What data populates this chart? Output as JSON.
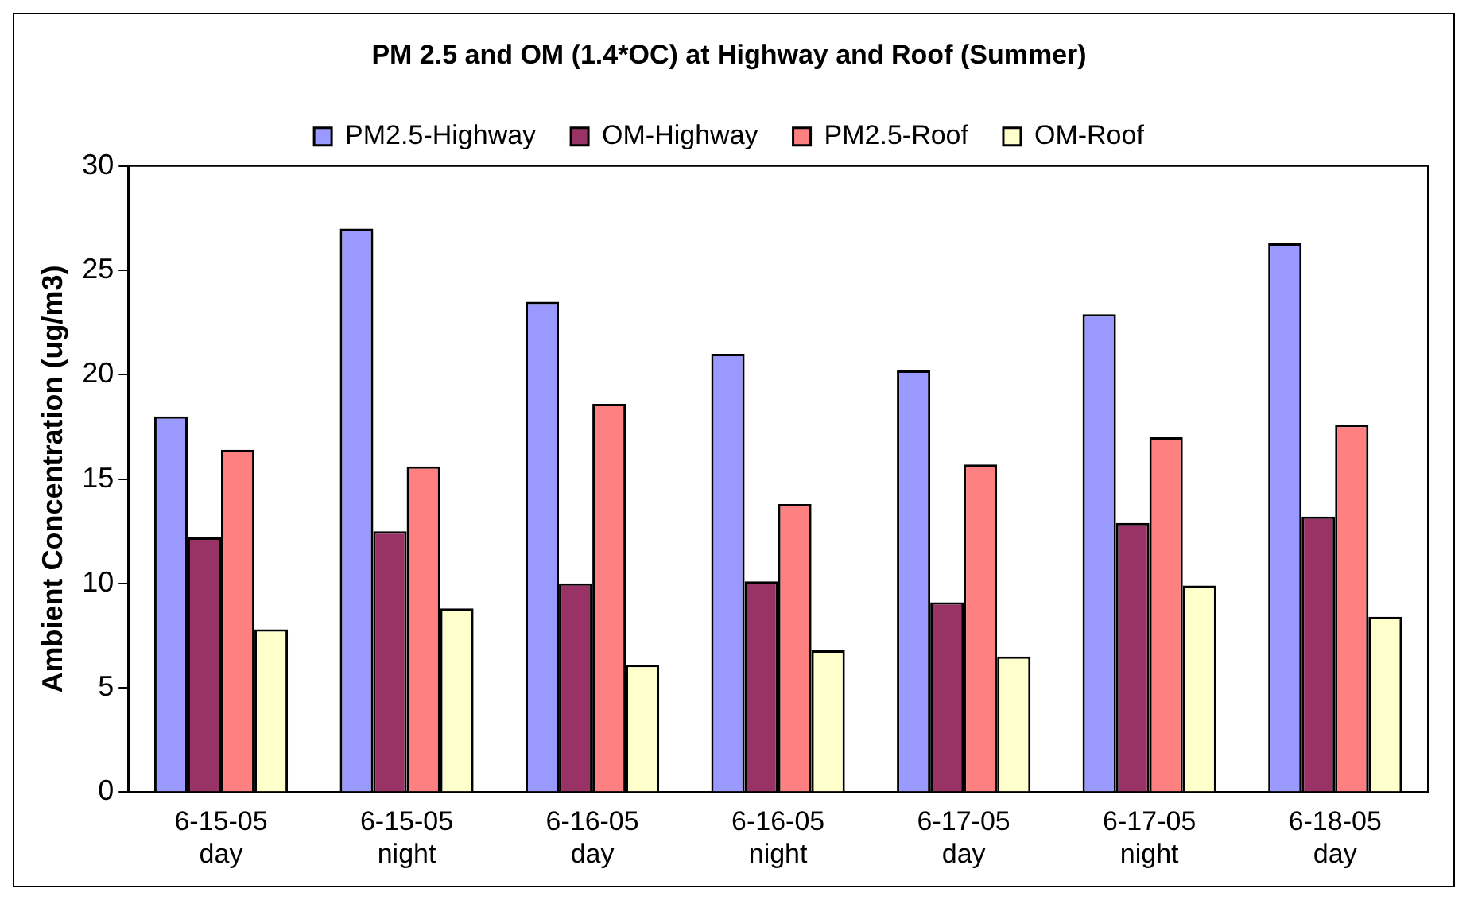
{
  "chart_data": {
    "type": "bar",
    "title": "PM 2.5 and OM (1.4*OC) at Highway and Roof (Summer)",
    "ylabel": "Ambient Concentration (ug/m3)",
    "categories": [
      "6-15-05\nday",
      "6-15-05\nnight",
      "6-16-05\nday",
      "6-16-05\nnight",
      "6-17-05\nday",
      "6-17-05\nnight",
      "6-18-05\nday"
    ],
    "series": [
      {
        "name": "PM2.5-Highway",
        "color": "#9999ff",
        "values": [
          18,
          27,
          23.5,
          21,
          20.2,
          22.9,
          26.3
        ]
      },
      {
        "name": "OM-Highway",
        "color": "#993366",
        "values": [
          12.2,
          12.5,
          10,
          10.1,
          9.1,
          12.9,
          13.2
        ]
      },
      {
        "name": "PM2.5-Roof",
        "color": "#ff8080",
        "values": [
          16.4,
          15.6,
          18.6,
          13.8,
          15.7,
          17,
          17.6
        ]
      },
      {
        "name": "OM-Roof",
        "color": "#ffffcc",
        "values": [
          7.8,
          8.8,
          6.1,
          6.8,
          6.5,
          9.9,
          8.4
        ]
      }
    ],
    "ylim": [
      0,
      30
    ],
    "yticks": [
      0,
      5,
      10,
      15,
      20,
      25,
      30
    ],
    "grid": false,
    "legend": "top"
  }
}
